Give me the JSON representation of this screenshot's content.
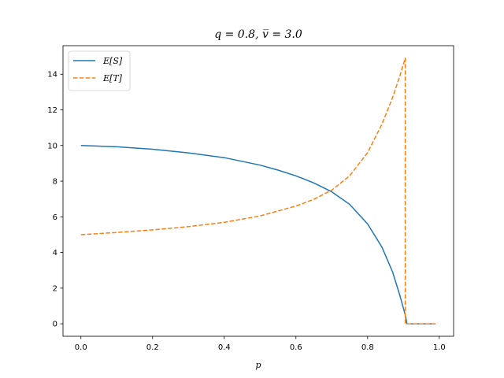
{
  "chart_data": {
    "type": "line",
    "title": "q = 0.8, v̅ = 3.0",
    "xlabel": "p",
    "ylabel": "",
    "xlim": [
      -0.05,
      1.04
    ],
    "ylim": [
      -0.7,
      15.6
    ],
    "xticks": [
      0.0,
      0.2,
      0.4,
      0.6,
      0.8,
      1.0
    ],
    "xtick_labels": [
      "0.0",
      "0.2",
      "0.4",
      "0.6",
      "0.8",
      "1.0"
    ],
    "yticks": [
      0,
      2,
      4,
      6,
      8,
      10,
      12,
      14
    ],
    "ytick_labels": [
      "0",
      "2",
      "4",
      "6",
      "8",
      "10",
      "12",
      "14"
    ],
    "grid": false,
    "legend_position": "top-left",
    "series": [
      {
        "name": "E[S]",
        "color": "#1f77b4",
        "dash": "solid",
        "x": [
          0.0,
          0.1,
          0.2,
          0.3,
          0.4,
          0.5,
          0.55,
          0.6,
          0.65,
          0.7,
          0.75,
          0.8,
          0.84,
          0.87,
          0.89,
          0.905,
          0.91,
          0.95,
          0.99
        ],
        "y": [
          10.0,
          9.93,
          9.79,
          9.59,
          9.32,
          8.9,
          8.62,
          8.3,
          7.9,
          7.4,
          6.7,
          5.6,
          4.3,
          2.9,
          1.6,
          0.5,
          0.0,
          0.0,
          0.0
        ]
      },
      {
        "name": "E[T]",
        "color": "#ff7f0e",
        "dash": "dashed",
        "x": [
          0.0,
          0.1,
          0.2,
          0.3,
          0.4,
          0.5,
          0.6,
          0.65,
          0.7,
          0.75,
          0.8,
          0.84,
          0.87,
          0.89,
          0.905,
          0.905,
          0.95,
          0.99
        ],
        "y": [
          5.0,
          5.12,
          5.27,
          5.45,
          5.69,
          6.05,
          6.6,
          6.98,
          7.5,
          8.3,
          9.6,
          11.2,
          12.7,
          13.9,
          14.9,
          0.0,
          0.0,
          0.0
        ]
      }
    ]
  }
}
